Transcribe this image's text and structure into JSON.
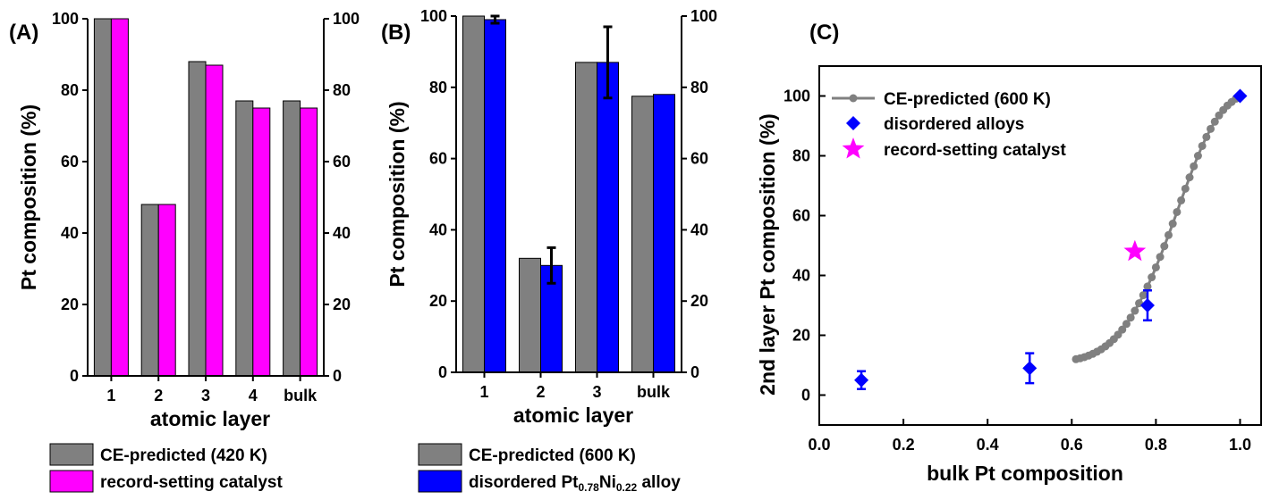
{
  "chart_data": [
    {
      "panel_label": "(A)",
      "type": "bar",
      "categories": [
        "1",
        "2",
        "3",
        "4",
        "bulk"
      ],
      "series": [
        {
          "name": "CE-predicted (420 K)",
          "values": [
            100,
            48,
            88,
            77,
            77
          ],
          "color": "#808080"
        },
        {
          "name": "record-setting catalyst",
          "values": [
            100,
            48,
            87,
            75,
            75
          ],
          "color": "#ff00ff"
        }
      ],
      "xlabel": "atomic layer",
      "ylabel": "Pt composition (%)",
      "ylim": [
        0,
        100
      ],
      "yticks": [
        "0",
        "20",
        "40",
        "60",
        "80",
        "100"
      ],
      "legend_position": "below"
    },
    {
      "panel_label": "(B)",
      "type": "bar",
      "categories": [
        "1",
        "2",
        "3",
        "bulk"
      ],
      "series": [
        {
          "name": "CE-predicted (600 K)",
          "values": [
            100,
            32,
            87,
            77.5
          ],
          "color": "#808080"
        },
        {
          "name_parts": [
            "disordered Pt",
            "0.78",
            "Ni",
            "0.22",
            " alloy"
          ],
          "values": [
            99,
            30,
            87,
            78
          ],
          "errors": [
            1,
            5,
            10,
            null
          ],
          "color": "#0000ff"
        }
      ],
      "xlabel": "atomic layer",
      "ylabel": "Pt composition (%)",
      "ylim": [
        0,
        100
      ],
      "yticks": [
        "0",
        "20",
        "40",
        "60",
        "80",
        "100"
      ],
      "legend_position": "below"
    },
    {
      "panel_label": "(C)",
      "type": "scatter",
      "xlabel": "bulk Pt composition",
      "ylabel": "2nd layer Pt composition (%)",
      "xlim": [
        0.0,
        1.05
      ],
      "ylim": [
        -10,
        110
      ],
      "xticks": [
        "0.0",
        "0.2",
        "0.4",
        "0.6",
        "0.8",
        "1.0"
      ],
      "yticks": [
        "0",
        "20",
        "40",
        "60",
        "80",
        "100"
      ],
      "series": [
        {
          "name": "CE-predicted (600 K)",
          "kind": "line-markers",
          "color": "#808080",
          "x": [
            0.61,
            0.62,
            0.63,
            0.64,
            0.65,
            0.66,
            0.67,
            0.68,
            0.69,
            0.7,
            0.71,
            0.72,
            0.73,
            0.74,
            0.75,
            0.76,
            0.77,
            0.78,
            0.79,
            0.8,
            0.81,
            0.82,
            0.83,
            0.84,
            0.85,
            0.86,
            0.87,
            0.88,
            0.89,
            0.9,
            0.91,
            0.92,
            0.93,
            0.94,
            0.95,
            0.96,
            0.97,
            0.98,
            0.99,
            1.0
          ],
          "y": [
            12,
            12.3,
            12.7,
            13.2,
            13.8,
            14.5,
            15.3,
            16.3,
            17.4,
            18.7,
            20.2,
            21.9,
            23.8,
            25.9,
            28.2,
            30.7,
            33.4,
            36.3,
            39.4,
            42.7,
            46.2,
            49.8,
            53.5,
            57.3,
            61.2,
            65.1,
            69.0,
            72.8,
            76.5,
            80.0,
            83.3,
            86.3,
            89.0,
            91.4,
            93.5,
            95.3,
            96.8,
            98.0,
            99.1,
            100
          ]
        },
        {
          "name": "disordered alloys",
          "kind": "diamond",
          "color": "#0000ff",
          "x": [
            0.1,
            0.5,
            0.78,
            1.0
          ],
          "y": [
            5,
            9,
            30,
            100
          ],
          "errors": [
            3,
            5,
            5,
            0
          ]
        },
        {
          "name": "record-setting catalyst",
          "kind": "star",
          "color": "#ff00ff",
          "x": [
            0.75
          ],
          "y": [
            48
          ]
        }
      ],
      "legend_position": "top-left"
    }
  ]
}
